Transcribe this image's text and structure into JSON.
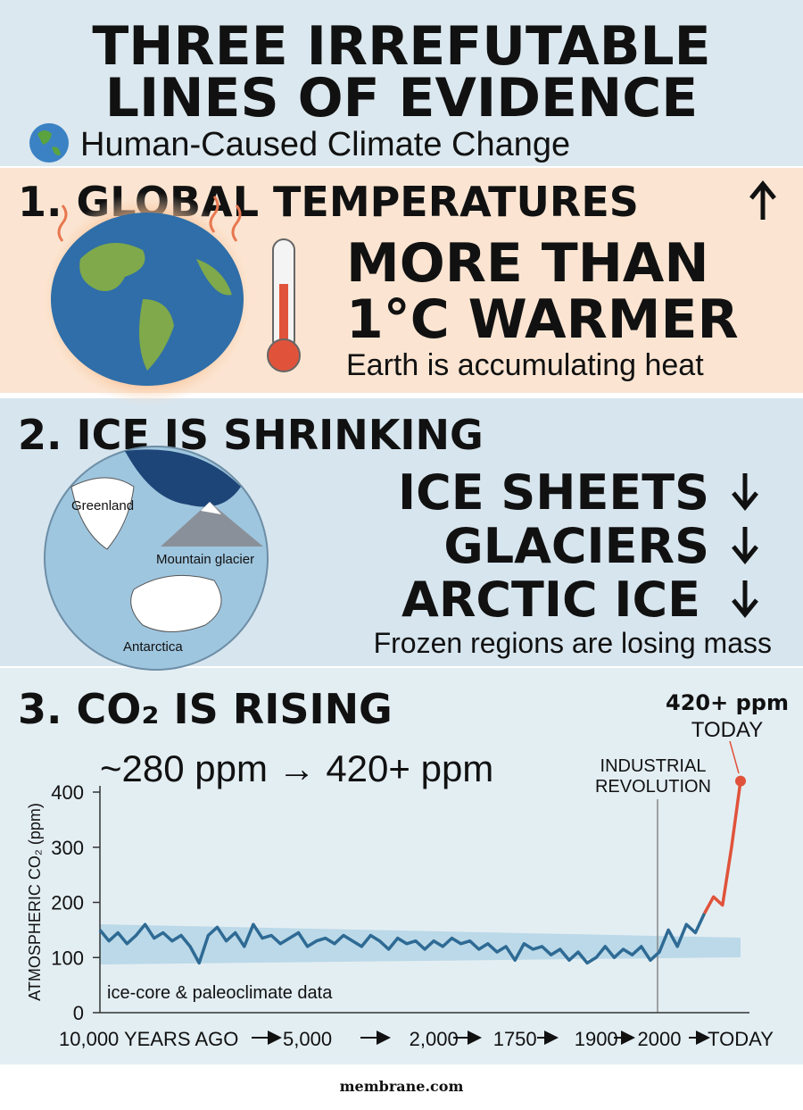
{
  "header": {
    "title_lines": [
      "THREE IRREFUTABLE",
      "LINES OF EVIDENCE"
    ],
    "subtitle": "Human-Caused Climate Change"
  },
  "section1": {
    "heading": "1. GLOBAL TEMPERATURES",
    "big_lines": [
      "MORE THAN",
      "1°C WARMER"
    ],
    "caption": "Earth is accumulating heat"
  },
  "section2": {
    "heading": "2. ICE IS SHRINKING",
    "map_labels": [
      "Greenland",
      "Mountain glacier",
      "Antarctica"
    ],
    "items": [
      "ICE SHEETS",
      "GLACIERS",
      "ARCTIC ICE"
    ],
    "caption": "Frozen regions are losing mass"
  },
  "section3": {
    "heading": "3. CO₂ IS RISING",
    "summary": "~280 ppm → 420+ ppm"
  },
  "chart_data": {
    "type": "line",
    "y_label": "ATMOSPHERIC CO₂ (ppm)",
    "annotations": [
      "INDUSTRIAL",
      "REVOLUTION",
      "420+ ppm",
      "TODAY",
      "ice-core & paleoclimate data"
    ],
    "categories": [
      "10,000 YEARS AGO",
      null,
      null,
      null,
      null,
      null,
      null,
      null,
      null,
      null,
      null,
      null,
      null,
      null,
      null,
      null,
      null,
      null,
      null,
      null,
      null,
      null,
      null,
      "5,000",
      null,
      null,
      null,
      null,
      null,
      null,
      null,
      null,
      null,
      null,
      null,
      null,
      null,
      "2,000",
      null,
      null,
      null,
      null,
      null,
      null,
      null,
      null,
      "1750",
      null,
      null,
      null,
      null,
      null,
      null,
      null,
      null,
      "1900",
      null,
      null,
      null,
      null,
      null,
      null,
      "2000",
      null,
      null,
      null,
      null,
      null,
      null,
      null,
      null,
      "TODAY"
    ],
    "series": [
      {
        "color": "#2e6a94",
        "values": [
          150,
          130,
          145,
          125,
          140,
          160,
          135,
          145,
          130,
          140,
          120,
          90,
          140,
          155,
          130,
          145,
          120,
          160,
          135,
          140,
          125,
          135,
          145,
          120,
          130,
          135,
          125,
          140,
          130,
          120,
          140,
          130,
          115,
          135,
          125,
          130,
          115,
          130,
          120,
          135,
          125,
          130,
          115,
          125,
          110,
          120,
          95,
          125,
          115,
          120,
          105,
          115,
          95,
          110,
          90,
          100,
          120,
          100,
          115,
          105,
          120,
          95,
          110,
          150,
          120,
          160,
          145,
          180,
          null,
          null,
          null,
          null
        ]
      },
      {
        "color": "#e0533a",
        "values": [
          null,
          null,
          null,
          null,
          null,
          null,
          null,
          null,
          null,
          null,
          null,
          null,
          null,
          null,
          null,
          null,
          null,
          null,
          null,
          null,
          null,
          null,
          null,
          null,
          null,
          null,
          null,
          null,
          null,
          null,
          null,
          null,
          null,
          null,
          null,
          null,
          null,
          null,
          null,
          null,
          null,
          null,
          null,
          null,
          null,
          null,
          null,
          null,
          null,
          null,
          null,
          null,
          null,
          null,
          null,
          null,
          null,
          null,
          null,
          null,
          null,
          null,
          null,
          null,
          null,
          null,
          null,
          180,
          210,
          195,
          300,
          420
        ]
      }
    ],
    "ylim": [
      0,
      400
    ],
    "yticks": [
      0,
      100,
      200,
      300,
      400
    ]
  },
  "footer": "membrane.com"
}
